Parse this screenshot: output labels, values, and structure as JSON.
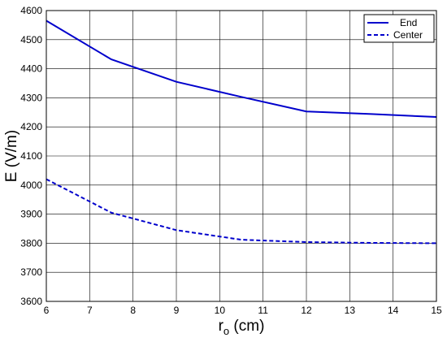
{
  "chart_data": {
    "type": "line",
    "xlabel_main": "r",
    "xlabel_sub": "o",
    "xlabel_unit": " (cm)",
    "ylabel": "E (V/m)",
    "xlim": [
      6,
      15
    ],
    "ylim": [
      3600,
      4600
    ],
    "x_ticks": [
      "6",
      "7",
      "8",
      "9",
      "10",
      "11",
      "12",
      "13",
      "14",
      "15"
    ],
    "y_ticks": [
      "3600",
      "3700",
      "3800",
      "3900",
      "4000",
      "4100",
      "4200",
      "4300",
      "4400",
      "4500",
      "4600"
    ],
    "grid": true,
    "legend_position": "top-right",
    "line_color": "#0000cc",
    "series": [
      {
        "name": "End",
        "style": "solid",
        "x": [
          6,
          7.5,
          9,
          10.5,
          12,
          13.5,
          15
        ],
        "y": [
          4565,
          4432,
          4355,
          4303,
          4253,
          4244,
          4234
        ]
      },
      {
        "name": "Center",
        "style": "dashed",
        "x": [
          6,
          7.5,
          9,
          10.5,
          12,
          13.5,
          15
        ],
        "y": [
          4020,
          3905,
          3845,
          3812,
          3804,
          3801,
          3800
        ]
      }
    ]
  }
}
